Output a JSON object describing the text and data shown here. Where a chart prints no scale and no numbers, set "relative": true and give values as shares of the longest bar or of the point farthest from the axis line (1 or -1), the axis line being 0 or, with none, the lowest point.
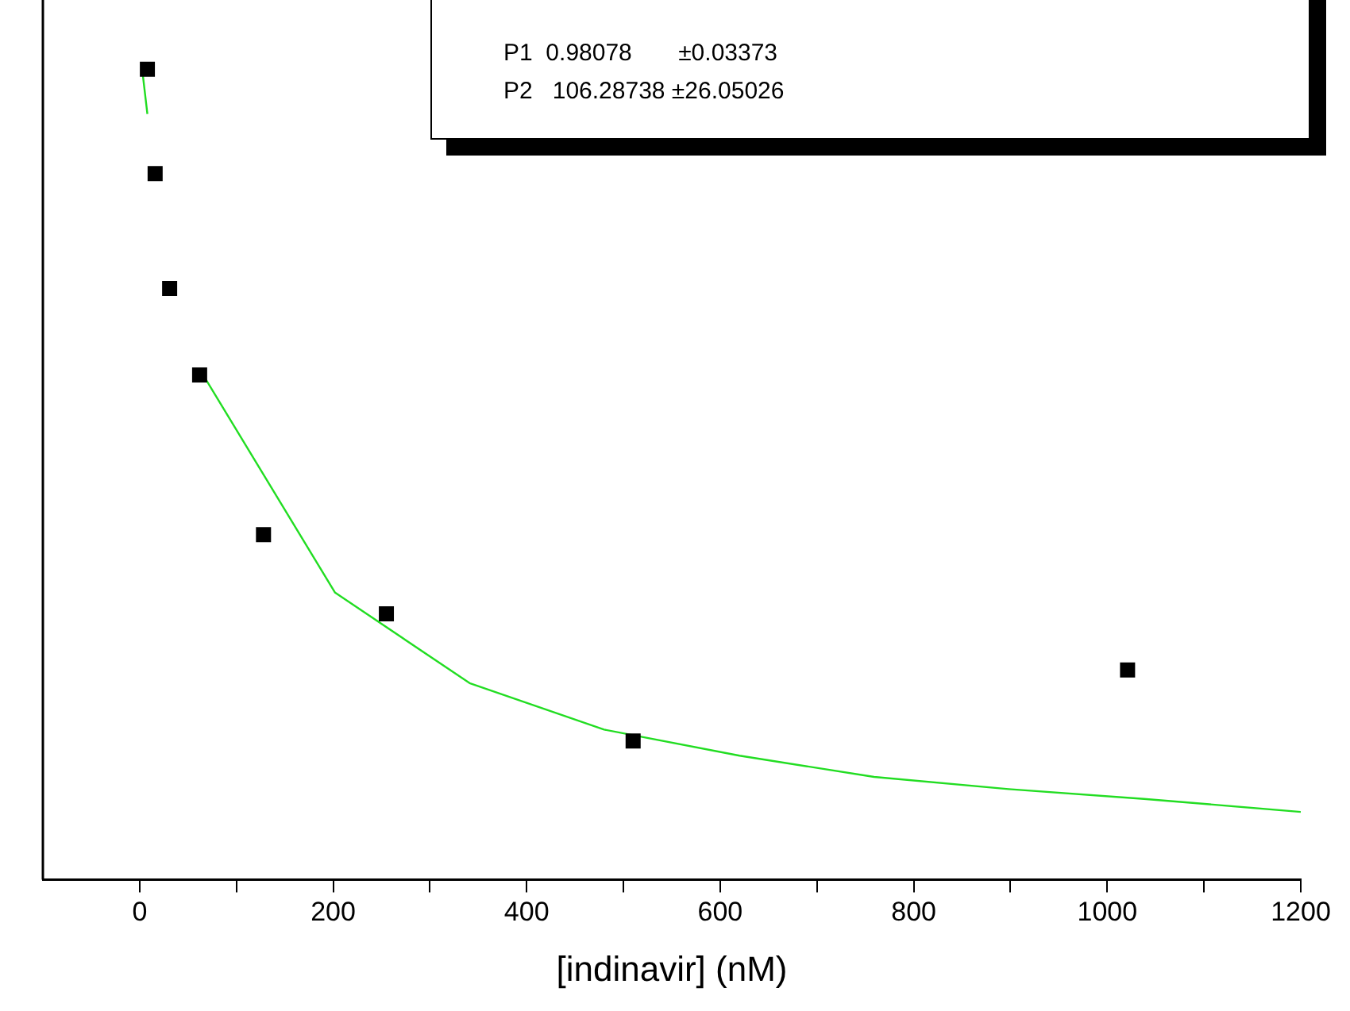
{
  "chart_data": {
    "type": "scatter",
    "xlabel": "[indinavir] (nM)",
    "relative": true,
    "marker": "square",
    "grid": false,
    "legend": false,
    "xlim": [
      -100,
      1200
    ],
    "xticks": [
      0,
      {
        "value": 100,
        "label": null
      },
      200,
      {
        "value": 300,
        "label": null
      },
      400,
      {
        "value": 500,
        "label": null
      },
      600,
      {
        "value": 700,
        "label": null
      },
      800,
      {
        "value": 900,
        "label": null
      },
      1000,
      {
        "value": 1100,
        "label": null
      },
      1200
    ],
    "annotations": [
      "P1  0.98078       ±0.03373",
      "P2   106.28738 ±26.05026"
    ],
    "series": [
      {
        "color": "#000000",
        "x": [
          8,
          16,
          31,
          62,
          128,
          255,
          510,
          1021
        ],
        "values": [
          0.994,
          0.866,
          0.725,
          0.619,
          0.423,
          0.326,
          0.17,
          0.257
        ]
      },
      {
        "type": "line",
        "color": "#22dd22",
        "marker": "none",
        "line_style": "solid",
        "x": [
          2,
          8,
          30,
          62,
          202,
          341,
          480,
          620,
          759,
          898,
          1038,
          1200
        ],
        "values": [
          1.0,
          0.939,
          null,
          0.626,
          0.352,
          0.241,
          0.184,
          0.152,
          0.126,
          0.111,
          0.099,
          0.083
        ]
      }
    ]
  }
}
